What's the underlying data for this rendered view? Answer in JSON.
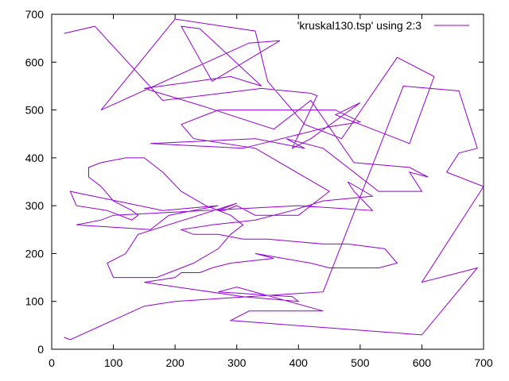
{
  "chart_data": {
    "type": "line",
    "title": "",
    "xlabel": "",
    "ylabel": "",
    "xlim": [
      0,
      700
    ],
    "ylim": [
      0,
      700
    ],
    "x_ticks": [
      0,
      100,
      200,
      300,
      400,
      500,
      600,
      700
    ],
    "y_ticks": [
      0,
      100,
      200,
      300,
      400,
      500,
      600,
      700
    ],
    "grid": false,
    "legend_position": "top-right",
    "series": [
      {
        "name": "'kruskal130.tsp' using 2:3",
        "color": "#9400d3",
        "x": [
          20,
          70,
          180,
          340,
          420,
          430,
          390,
          420,
          500,
          460,
          580,
          620,
          560,
          470,
          410,
          350,
          330,
          200,
          80,
          320,
          370,
          260,
          210,
          240,
          340,
          290,
          150,
          240,
          360,
          420,
          490,
          580,
          610,
          580,
          600,
          530,
          440,
          380,
          410,
          330,
          160,
          310,
          450,
          500,
          460,
          350,
          270,
          210,
          230,
          330,
          450,
          400,
          330,
          300,
          280,
          270,
          300,
          140,
          120,
          90,
          100,
          170,
          230,
          270,
          290,
          310,
          290,
          250,
          210,
          180,
          170,
          150,
          120,
          80,
          60,
          60,
          80,
          100,
          130,
          140,
          130,
          90,
          40,
          30,
          180,
          270,
          190,
          160,
          40,
          80,
          100,
          400,
          520,
          490,
          480,
          520,
          440,
          390,
          330,
          260,
          210,
          230,
          270,
          310,
          350,
          440,
          480,
          540,
          560,
          530,
          450,
          420,
          330,
          360,
          290,
          260,
          240,
          210,
          200,
          150,
          310,
          400,
          390,
          270,
          300,
          440,
          320,
          290,
          600,
          690,
          600,
          700,
          640,
          660,
          690,
          660,
          570,
          440,
          200,
          150,
          30,
          20
        ],
        "y": [
          660,
          675,
          520,
          545,
          535,
          530,
          420,
          440,
          515,
          490,
          430,
          570,
          610,
          440,
          470,
          560,
          665,
          690,
          500,
          640,
          645,
          560,
          675,
          670,
          550,
          570,
          545,
          510,
          460,
          520,
          390,
          380,
          360,
          370,
          330,
          330,
          420,
          440,
          420,
          440,
          430,
          420,
          465,
          475,
          500,
          500,
          500,
          470,
          440,
          420,
          330,
          280,
          280,
          300,
          290,
          290,
          305,
          240,
          200,
          180,
          150,
          150,
          180,
          210,
          240,
          260,
          280,
          300,
          330,
          370,
          380,
          400,
          400,
          390,
          380,
          360,
          340,
          310,
          290,
          280,
          270,
          290,
          300,
          330,
          290,
          300,
          280,
          250,
          260,
          270,
          280,
          300,
          290,
          330,
          350,
          320,
          310,
          290,
          270,
          260,
          250,
          240,
          240,
          230,
          230,
          220,
          220,
          210,
          180,
          170,
          170,
          180,
          200,
          190,
          180,
          170,
          160,
          160,
          150,
          140,
          110,
          100,
          110,
          120,
          130,
          80,
          80,
          60,
          30,
          170,
          140,
          340,
          370,
          410,
          420,
          540,
          550,
          120,
          100,
          90,
          20,
          25
        ]
      }
    ]
  }
}
